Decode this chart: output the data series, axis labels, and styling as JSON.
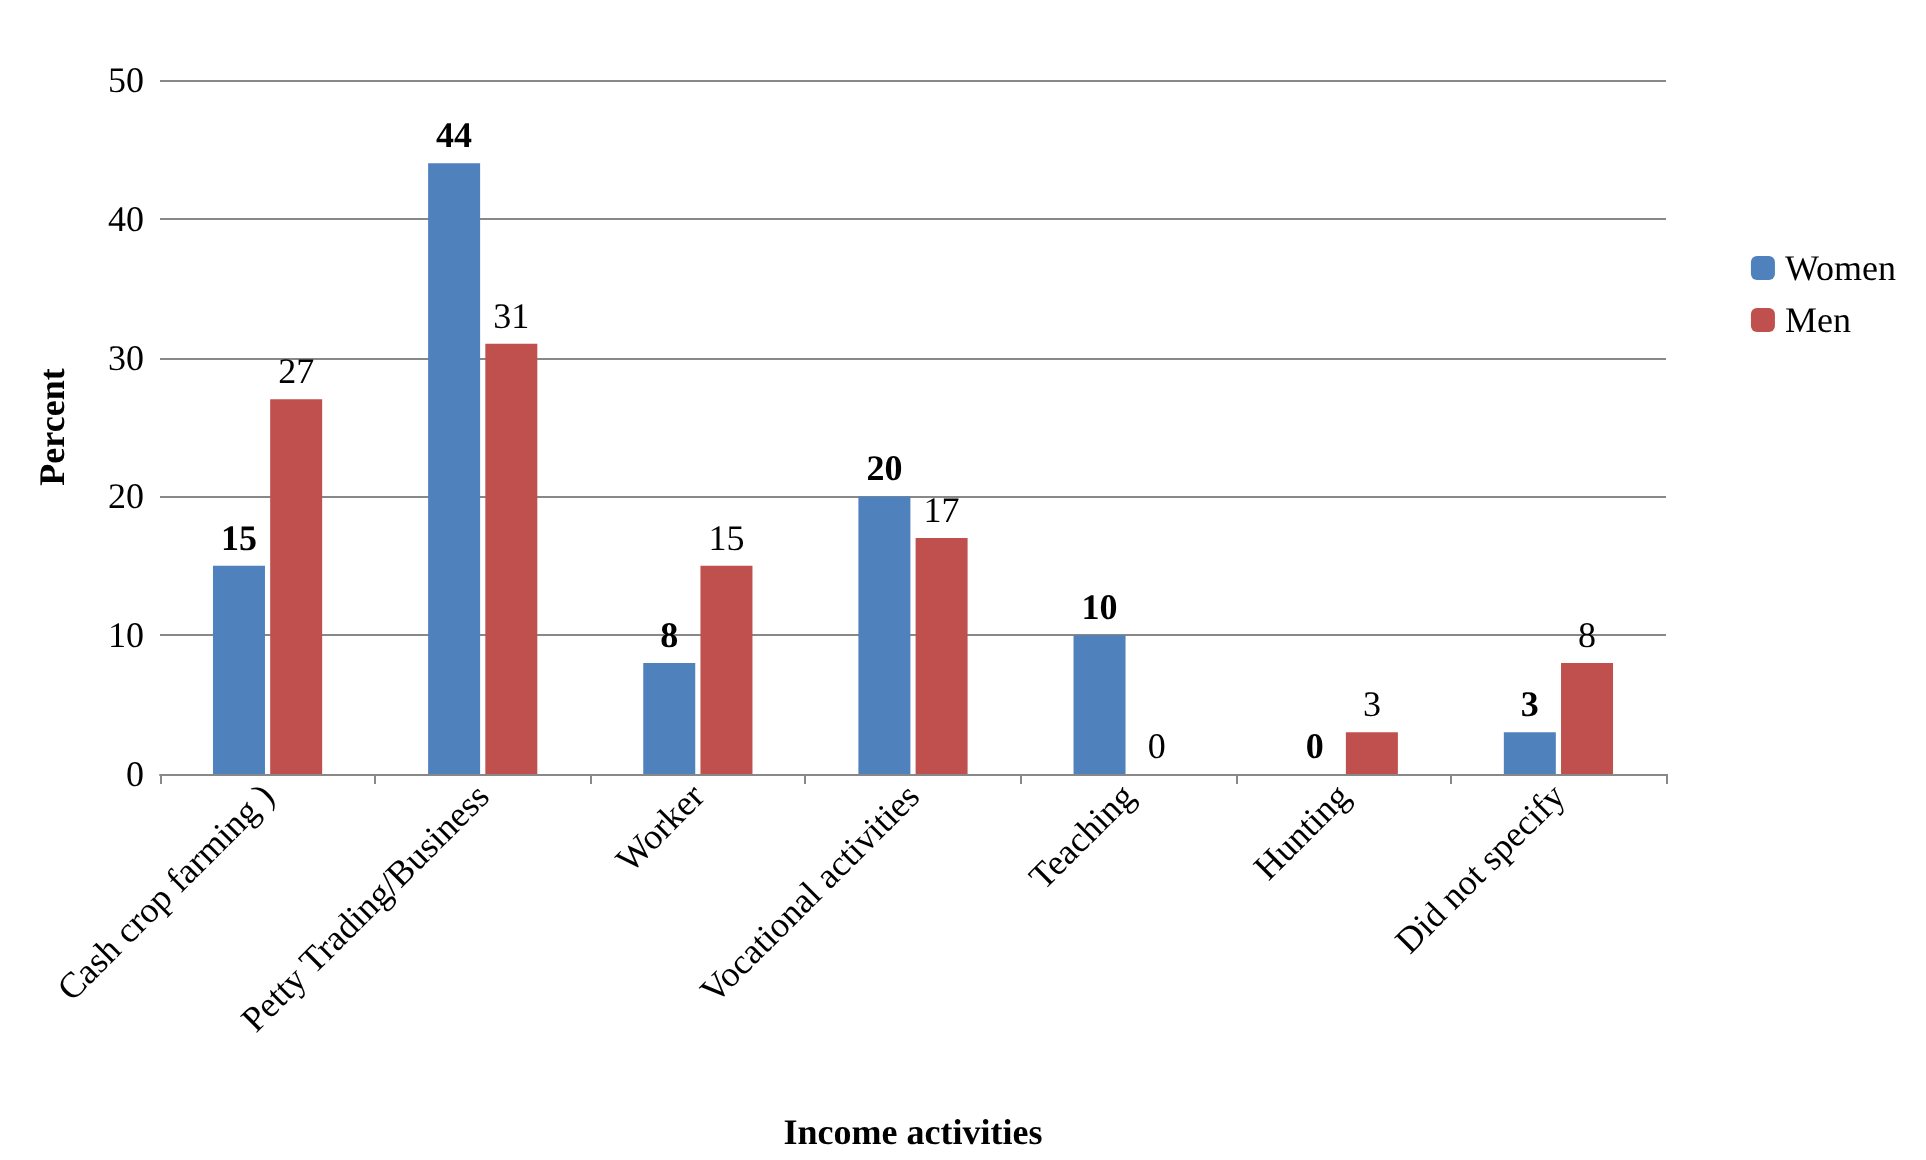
{
  "chart_data": {
    "type": "bar",
    "xlabel": "Income activities",
    "ylabel": "Percent",
    "categories": [
      "Cash crop farming )",
      "Petty Trading/Business",
      "Worker",
      "Vocational activities",
      "Teaching",
      "Hunting",
      "Did not specify"
    ],
    "series": [
      {
        "name": "Women",
        "color": "#4f81bd",
        "values": [
          15,
          44,
          8,
          20,
          10,
          0,
          3
        ]
      },
      {
        "name": "Men",
        "color": "#c0504d",
        "values": [
          27,
          31,
          15,
          17,
          0,
          3,
          8
        ]
      }
    ],
    "ylim": [
      0,
      50
    ],
    "yticks": [
      0,
      10,
      20,
      30,
      40,
      50
    ],
    "grid": "y",
    "legend": "right",
    "data_labels": true
  }
}
